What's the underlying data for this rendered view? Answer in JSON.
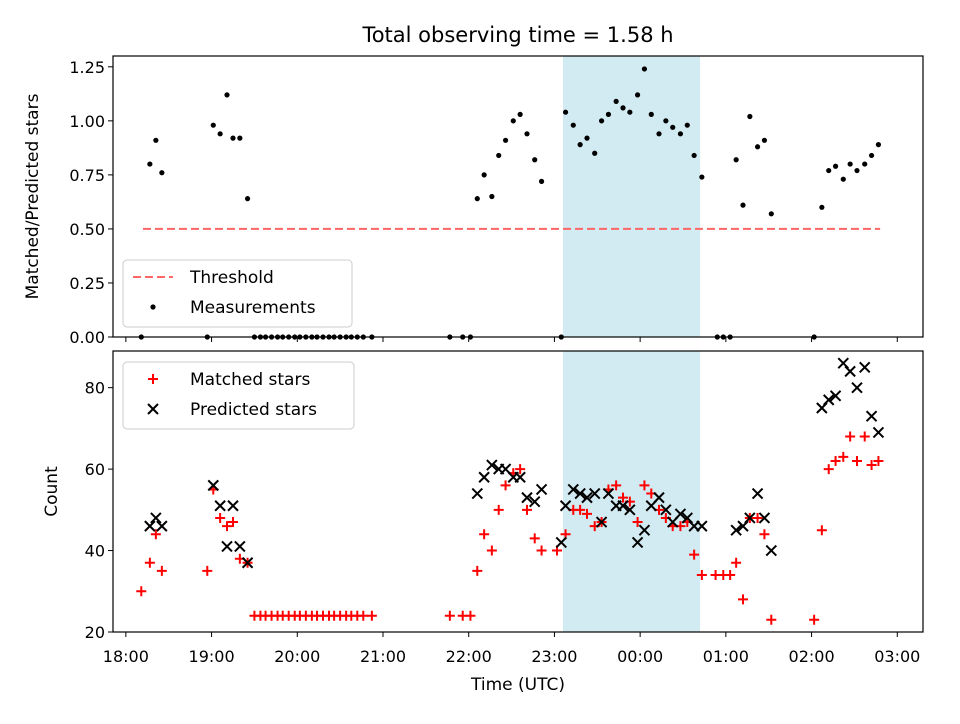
{
  "figure_title": "Total observing time = 1.58 h",
  "highlight_color": "#add8e6",
  "chart_data": [
    {
      "type": "scatter",
      "ylabel": "Matched/Predicted stars",
      "ylim": [
        0,
        1.3
      ],
      "yticks": [
        0.0,
        0.25,
        0.5,
        0.75,
        1.0,
        1.25
      ],
      "ytick_labels": [
        "0.00",
        "0.25",
        "0.50",
        "0.75",
        "1.00",
        "1.25"
      ],
      "xlim": [
        17.85,
        27.3
      ],
      "grid": false,
      "legend_position": "lower-left",
      "highlight_span": [
        23.1,
        24.7
      ],
      "threshold": {
        "name": "Threshold",
        "value": 0.5,
        "x_range": [
          18.2,
          26.8
        ],
        "color": "#ff6666"
      },
      "measurements": {
        "name": "Measurements",
        "color": "#000000",
        "points": [
          [
            18.18,
            0.0
          ],
          [
            18.28,
            0.8
          ],
          [
            18.35,
            0.91
          ],
          [
            18.42,
            0.76
          ],
          [
            18.95,
            0.0
          ],
          [
            19.02,
            0.98
          ],
          [
            19.1,
            0.94
          ],
          [
            19.18,
            1.12
          ],
          [
            19.25,
            0.92
          ],
          [
            19.33,
            0.92
          ],
          [
            19.42,
            0.64
          ],
          [
            19.5,
            0.0
          ],
          [
            19.57,
            0.0
          ],
          [
            19.63,
            0.0
          ],
          [
            19.7,
            0.0
          ],
          [
            19.77,
            0.0
          ],
          [
            19.83,
            0.0
          ],
          [
            19.9,
            0.0
          ],
          [
            19.97,
            0.0
          ],
          [
            20.03,
            0.0
          ],
          [
            20.1,
            0.0
          ],
          [
            20.17,
            0.0
          ],
          [
            20.23,
            0.0
          ],
          [
            20.3,
            0.0
          ],
          [
            20.37,
            0.0
          ],
          [
            20.43,
            0.0
          ],
          [
            20.5,
            0.0
          ],
          [
            20.57,
            0.0
          ],
          [
            20.63,
            0.0
          ],
          [
            20.7,
            0.0
          ],
          [
            20.77,
            0.0
          ],
          [
            20.87,
            0.0
          ],
          [
            21.78,
            0.0
          ],
          [
            21.93,
            0.0
          ],
          [
            22.02,
            0.0
          ],
          [
            22.1,
            0.64
          ],
          [
            22.18,
            0.75
          ],
          [
            22.27,
            0.65
          ],
          [
            22.35,
            0.84
          ],
          [
            22.43,
            0.91
          ],
          [
            22.52,
            1.0
          ],
          [
            22.6,
            1.03
          ],
          [
            22.68,
            0.94
          ],
          [
            22.77,
            0.82
          ],
          [
            22.85,
            0.72
          ],
          [
            23.08,
            0.0
          ],
          [
            23.13,
            1.04
          ],
          [
            23.22,
            0.98
          ],
          [
            23.3,
            0.89
          ],
          [
            23.38,
            0.92
          ],
          [
            23.47,
            0.85
          ],
          [
            23.55,
            1.0
          ],
          [
            23.63,
            1.03
          ],
          [
            23.72,
            1.09
          ],
          [
            23.8,
            1.06
          ],
          [
            23.88,
            1.04
          ],
          [
            23.97,
            1.12
          ],
          [
            24.05,
            1.24
          ],
          [
            24.13,
            1.03
          ],
          [
            24.22,
            0.94
          ],
          [
            24.3,
            1.0
          ],
          [
            24.38,
            0.97
          ],
          [
            24.47,
            0.94
          ],
          [
            24.55,
            0.98
          ],
          [
            24.63,
            0.84
          ],
          [
            24.72,
            0.74
          ],
          [
            24.9,
            0.0
          ],
          [
            24.97,
            0.0
          ],
          [
            25.05,
            0.0
          ],
          [
            25.12,
            0.82
          ],
          [
            25.2,
            0.61
          ],
          [
            25.28,
            1.02
          ],
          [
            25.37,
            0.88
          ],
          [
            25.45,
            0.91
          ],
          [
            25.53,
            0.57
          ],
          [
            26.03,
            0.0
          ],
          [
            26.12,
            0.6
          ],
          [
            26.2,
            0.77
          ],
          [
            26.28,
            0.79
          ],
          [
            26.37,
            0.73
          ],
          [
            26.45,
            0.8
          ],
          [
            26.53,
            0.77
          ],
          [
            26.62,
            0.8
          ],
          [
            26.7,
            0.84
          ],
          [
            26.78,
            0.89
          ]
        ]
      }
    },
    {
      "type": "scatter",
      "ylabel": "Count",
      "xlabel": "Time (UTC)",
      "ylim": [
        20,
        89
      ],
      "yticks": [
        20,
        40,
        60,
        80
      ],
      "ytick_labels": [
        "20",
        "40",
        "60",
        "80"
      ],
      "xlim": [
        17.85,
        27.3
      ],
      "xticks": [
        18,
        19,
        20,
        21,
        22,
        23,
        24,
        25,
        26,
        27
      ],
      "xtick_labels": [
        "18:00",
        "19:00",
        "20:00",
        "21:00",
        "22:00",
        "23:00",
        "00:00",
        "01:00",
        "02:00",
        "03:00"
      ],
      "grid": false,
      "legend_position": "upper-left",
      "highlight_span": [
        23.1,
        24.7
      ],
      "series": [
        {
          "name": "Matched stars",
          "marker": "plus",
          "color": "#ff0000",
          "points": [
            [
              18.18,
              30
            ],
            [
              18.28,
              37
            ],
            [
              18.35,
              44
            ],
            [
              18.42,
              35
            ],
            [
              18.95,
              35
            ],
            [
              19.02,
              55
            ],
            [
              19.1,
              48
            ],
            [
              19.18,
              46
            ],
            [
              19.25,
              47
            ],
            [
              19.33,
              38
            ],
            [
              19.42,
              37
            ],
            [
              19.5,
              24
            ],
            [
              19.57,
              24
            ],
            [
              19.63,
              24
            ],
            [
              19.7,
              24
            ],
            [
              19.77,
              24
            ],
            [
              19.83,
              24
            ],
            [
              19.9,
              24
            ],
            [
              19.97,
              24
            ],
            [
              20.03,
              24
            ],
            [
              20.1,
              24
            ],
            [
              20.17,
              24
            ],
            [
              20.23,
              24
            ],
            [
              20.3,
              24
            ],
            [
              20.37,
              24
            ],
            [
              20.43,
              24
            ],
            [
              20.5,
              24
            ],
            [
              20.57,
              24
            ],
            [
              20.63,
              24
            ],
            [
              20.7,
              24
            ],
            [
              20.77,
              24
            ],
            [
              20.87,
              24
            ],
            [
              21.78,
              24
            ],
            [
              21.93,
              24
            ],
            [
              22.02,
              24
            ],
            [
              22.1,
              35
            ],
            [
              22.18,
              44
            ],
            [
              22.27,
              40
            ],
            [
              22.35,
              50
            ],
            [
              22.43,
              56
            ],
            [
              22.52,
              59
            ],
            [
              22.6,
              60
            ],
            [
              22.68,
              50
            ],
            [
              22.77,
              43
            ],
            [
              22.85,
              40
            ],
            [
              23.03,
              40
            ],
            [
              23.13,
              44
            ],
            [
              23.22,
              50
            ],
            [
              23.3,
              50
            ],
            [
              23.38,
              49
            ],
            [
              23.47,
              46
            ],
            [
              23.55,
              47
            ],
            [
              23.63,
              55
            ],
            [
              23.72,
              56
            ],
            [
              23.8,
              53
            ],
            [
              23.88,
              52
            ],
            [
              23.97,
              47
            ],
            [
              24.05,
              56
            ],
            [
              24.13,
              54
            ],
            [
              24.22,
              50
            ],
            [
              24.3,
              48
            ],
            [
              24.38,
              46
            ],
            [
              24.47,
              46
            ],
            [
              24.55,
              47
            ],
            [
              24.63,
              39
            ],
            [
              24.72,
              34
            ],
            [
              24.88,
              34
            ],
            [
              24.97,
              34
            ],
            [
              25.05,
              34
            ],
            [
              25.12,
              37
            ],
            [
              25.2,
              28
            ],
            [
              25.28,
              48
            ],
            [
              25.37,
              48
            ],
            [
              25.45,
              44
            ],
            [
              25.53,
              23
            ],
            [
              26.03,
              23
            ],
            [
              26.12,
              45
            ],
            [
              26.2,
              60
            ],
            [
              26.28,
              62
            ],
            [
              26.37,
              63
            ],
            [
              26.45,
              68
            ],
            [
              26.53,
              62
            ],
            [
              26.62,
              68
            ],
            [
              26.7,
              61
            ],
            [
              26.78,
              62
            ]
          ]
        },
        {
          "name": "Predicted stars",
          "marker": "x",
          "color": "#000000",
          "points": [
            [
              18.28,
              46
            ],
            [
              18.35,
              48
            ],
            [
              18.42,
              46
            ],
            [
              19.02,
              56
            ],
            [
              19.1,
              51
            ],
            [
              19.18,
              41
            ],
            [
              19.25,
              51
            ],
            [
              19.33,
              41
            ],
            [
              19.42,
              37
            ],
            [
              22.1,
              54
            ],
            [
              22.18,
              58
            ],
            [
              22.27,
              61
            ],
            [
              22.35,
              60
            ],
            [
              22.43,
              60
            ],
            [
              22.52,
              58
            ],
            [
              22.6,
              58
            ],
            [
              22.68,
              53
            ],
            [
              22.77,
              52
            ],
            [
              22.85,
              55
            ],
            [
              23.08,
              42
            ],
            [
              23.13,
              51
            ],
            [
              23.22,
              55
            ],
            [
              23.3,
              54
            ],
            [
              23.38,
              53
            ],
            [
              23.47,
              54
            ],
            [
              23.55,
              47
            ],
            [
              23.63,
              54
            ],
            [
              23.72,
              51
            ],
            [
              23.8,
              51
            ],
            [
              23.88,
              50
            ],
            [
              23.97,
              42
            ],
            [
              24.05,
              45
            ],
            [
              24.13,
              51
            ],
            [
              24.22,
              53
            ],
            [
              24.3,
              50
            ],
            [
              24.38,
              47
            ],
            [
              24.47,
              49
            ],
            [
              24.55,
              48
            ],
            [
              24.63,
              46
            ],
            [
              24.72,
              46
            ],
            [
              25.12,
              45
            ],
            [
              25.2,
              46
            ],
            [
              25.28,
              48
            ],
            [
              25.37,
              54
            ],
            [
              25.45,
              48
            ],
            [
              25.53,
              40
            ],
            [
              26.12,
              75
            ],
            [
              26.2,
              77
            ],
            [
              26.28,
              78
            ],
            [
              26.37,
              86
            ],
            [
              26.45,
              84
            ],
            [
              26.53,
              80
            ],
            [
              26.62,
              85
            ],
            [
              26.7,
              73
            ],
            [
              26.78,
              69
            ]
          ]
        }
      ]
    }
  ]
}
